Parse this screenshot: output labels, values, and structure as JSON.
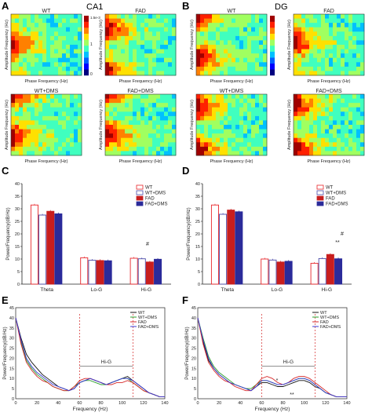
{
  "panel_letters": {
    "A": "A",
    "B": "B",
    "C": "C",
    "D": "D",
    "E": "E",
    "F": "F"
  },
  "regions": {
    "ca1": "CA1",
    "dg": "DG"
  },
  "heatmap_titles": {
    "ca1": [
      "WT",
      "FAD",
      "WT+DMS",
      "FAD+DMS"
    ],
    "dg": [
      "WT",
      "FAD",
      "WT+DMS",
      "FAD+DMS"
    ]
  },
  "heatmap_axes": {
    "x": "Phase Frequency (Hz)",
    "y": "Amplitude Frequency (Hz)"
  },
  "colorbar": {
    "top": "1.5e-3",
    "mid": "1",
    "bottom": "0"
  },
  "bar_legend": [
    "WT",
    "WT+DMS",
    "FAD",
    "FAD+DMS"
  ],
  "bar_ylabel": "Power/Frequency(dB/Hz)",
  "line_legend": [
    "WT",
    "WT+DMS",
    "FAD",
    "FAD+DMS"
  ],
  "line_xlabel": "Frequency (Hz)",
  "line_ylabel": "Power/Frequency(dB/Hz)",
  "hig_label": "Hi-G",
  "sig_marks": {
    "C_hash": "#",
    "D_hash": "#",
    "D_star": "**",
    "F_star1": "*",
    "F_star2": "**"
  },
  "colors": {
    "WT": "#e8252a",
    "WT+DMS": "#4a4aa8",
    "FAD": "#c81e1e",
    "FAD+DMS": "#2b2b9a",
    "lineWT": "#111111",
    "lineWTDMS": "#2ca02c",
    "lineFAD": "#d62728",
    "lineFADDMS": "#3b3bd6"
  },
  "chart_data": [
    {
      "type": "bar",
      "panel": "C",
      "categories": [
        "Theta",
        "Lo-G",
        "Hi-G"
      ],
      "ylabel": "Power/Frequency(dB/Hz)",
      "ylim": [
        0,
        40
      ],
      "yticks": [
        0,
        5,
        10,
        15,
        20,
        25,
        30,
        35,
        40
      ],
      "series": [
        {
          "name": "WT",
          "values": [
            31.5,
            10.5,
            10.3
          ]
        },
        {
          "name": "WT+DMS",
          "values": [
            27.5,
            9.5,
            10.1
          ]
        },
        {
          "name": "FAD",
          "values": [
            29,
            9.4,
            8.8
          ]
        },
        {
          "name": "FAD+DMS",
          "values": [
            28,
            9.3,
            9.9
          ]
        }
      ]
    },
    {
      "type": "bar",
      "panel": "D",
      "categories": [
        "Theta",
        "Lo-G",
        "Hi-G"
      ],
      "ylabel": "Power/Frequency(dB/Hz)",
      "ylim": [
        0,
        40
      ],
      "yticks": [
        0,
        5,
        10,
        15,
        20,
        25,
        30,
        35,
        40
      ],
      "series": [
        {
          "name": "WT",
          "values": [
            31.5,
            10,
            8.3
          ]
        },
        {
          "name": "WT+DMS",
          "values": [
            27.8,
            9.6,
            10.2
          ]
        },
        {
          "name": "FAD",
          "values": [
            29.5,
            8.8,
            11.8
          ]
        },
        {
          "name": "FAD+DMS",
          "values": [
            28.8,
            9.1,
            10.1
          ]
        }
      ]
    },
    {
      "type": "line",
      "panel": "E",
      "xlabel": "Frequency (Hz)",
      "ylabel": "Power/Frequency(dB/Hz)",
      "xlim": [
        0,
        140
      ],
      "ylim": [
        0,
        45
      ],
      "xticks": [
        0,
        20,
        40,
        60,
        80,
        100,
        120,
        140
      ],
      "yticks": [
        0,
        5,
        10,
        15,
        20,
        25,
        30,
        35,
        40,
        45
      ],
      "x": [
        0,
        5,
        10,
        15,
        20,
        25,
        30,
        35,
        40,
        45,
        50,
        55,
        60,
        65,
        70,
        75,
        80,
        85,
        90,
        95,
        100,
        105,
        110,
        115,
        120,
        125,
        130,
        135,
        140
      ],
      "series": [
        {
          "name": "WT",
          "values": [
            40,
            30,
            22,
            18,
            15,
            12,
            10,
            8,
            6,
            5,
            4,
            5,
            8,
            9,
            10,
            9,
            8,
            7,
            8,
            9,
            10,
            11,
            9,
            7,
            5,
            3,
            2,
            1,
            1
          ]
        },
        {
          "name": "WT+DMS",
          "values": [
            40,
            28,
            19,
            15,
            12,
            10,
            8,
            6,
            5,
            4,
            4,
            6,
            8,
            9,
            9,
            8,
            7,
            7,
            8,
            9,
            10,
            10,
            8,
            6,
            4,
            3,
            2,
            1,
            1
          ]
        },
        {
          "name": "FAD",
          "values": [
            40,
            27,
            18,
            14,
            11,
            9,
            8,
            6,
            5,
            4,
            4,
            6,
            9,
            10,
            10,
            9,
            8,
            7,
            7,
            8,
            8,
            9,
            8,
            6,
            4,
            3,
            2,
            1,
            1
          ]
        },
        {
          "name": "FAD+DMS",
          "values": [
            40,
            29,
            20,
            16,
            13,
            11,
            9,
            7,
            6,
            5,
            4,
            5,
            8,
            9,
            10,
            9,
            8,
            7,
            8,
            9,
            10,
            10,
            9,
            7,
            5,
            3,
            2,
            1,
            1
          ]
        }
      ]
    },
    {
      "type": "line",
      "panel": "F",
      "xlabel": "Frequency (Hz)",
      "ylabel": "Power/Frequency(dB/Hz)",
      "xlim": [
        0,
        140
      ],
      "ylim": [
        0,
        45
      ],
      "xticks": [
        0,
        20,
        40,
        60,
        80,
        100,
        120,
        140
      ],
      "yticks": [
        0,
        5,
        10,
        15,
        20,
        25,
        30,
        35,
        40,
        45
      ],
      "x": [
        0,
        5,
        10,
        15,
        20,
        25,
        30,
        35,
        40,
        45,
        50,
        55,
        60,
        65,
        70,
        75,
        80,
        85,
        90,
        95,
        100,
        105,
        110,
        115,
        120,
        125,
        130,
        135,
        140
      ],
      "series": [
        {
          "name": "WT",
          "values": [
            40,
            28,
            19,
            15,
            12,
            10,
            8,
            7,
            6,
            5,
            4,
            6,
            8,
            8,
            7,
            6,
            6,
            7,
            8,
            9,
            9,
            8,
            6,
            5,
            3,
            2,
            1,
            1,
            1
          ]
        },
        {
          "name": "WT+DMS",
          "values": [
            40,
            30,
            21,
            16,
            13,
            11,
            9,
            7,
            6,
            5,
            5,
            7,
            9,
            9,
            8,
            7,
            7,
            8,
            9,
            10,
            10,
            9,
            7,
            5,
            3,
            2,
            1,
            1,
            1
          ]
        },
        {
          "name": "FAD",
          "values": [
            40,
            27,
            18,
            14,
            11,
            9,
            8,
            6,
            5,
            4,
            4,
            7,
            10,
            11,
            10,
            8,
            7,
            8,
            10,
            11,
            11,
            10,
            8,
            6,
            4,
            2,
            1,
            1,
            1
          ]
        },
        {
          "name": "FAD+DMS",
          "values": [
            40,
            29,
            20,
            15,
            12,
            10,
            8,
            7,
            6,
            5,
            4,
            6,
            9,
            9,
            8,
            7,
            7,
            8,
            9,
            10,
            10,
            9,
            7,
            5,
            3,
            2,
            1,
            1,
            1
          ]
        }
      ]
    }
  ]
}
